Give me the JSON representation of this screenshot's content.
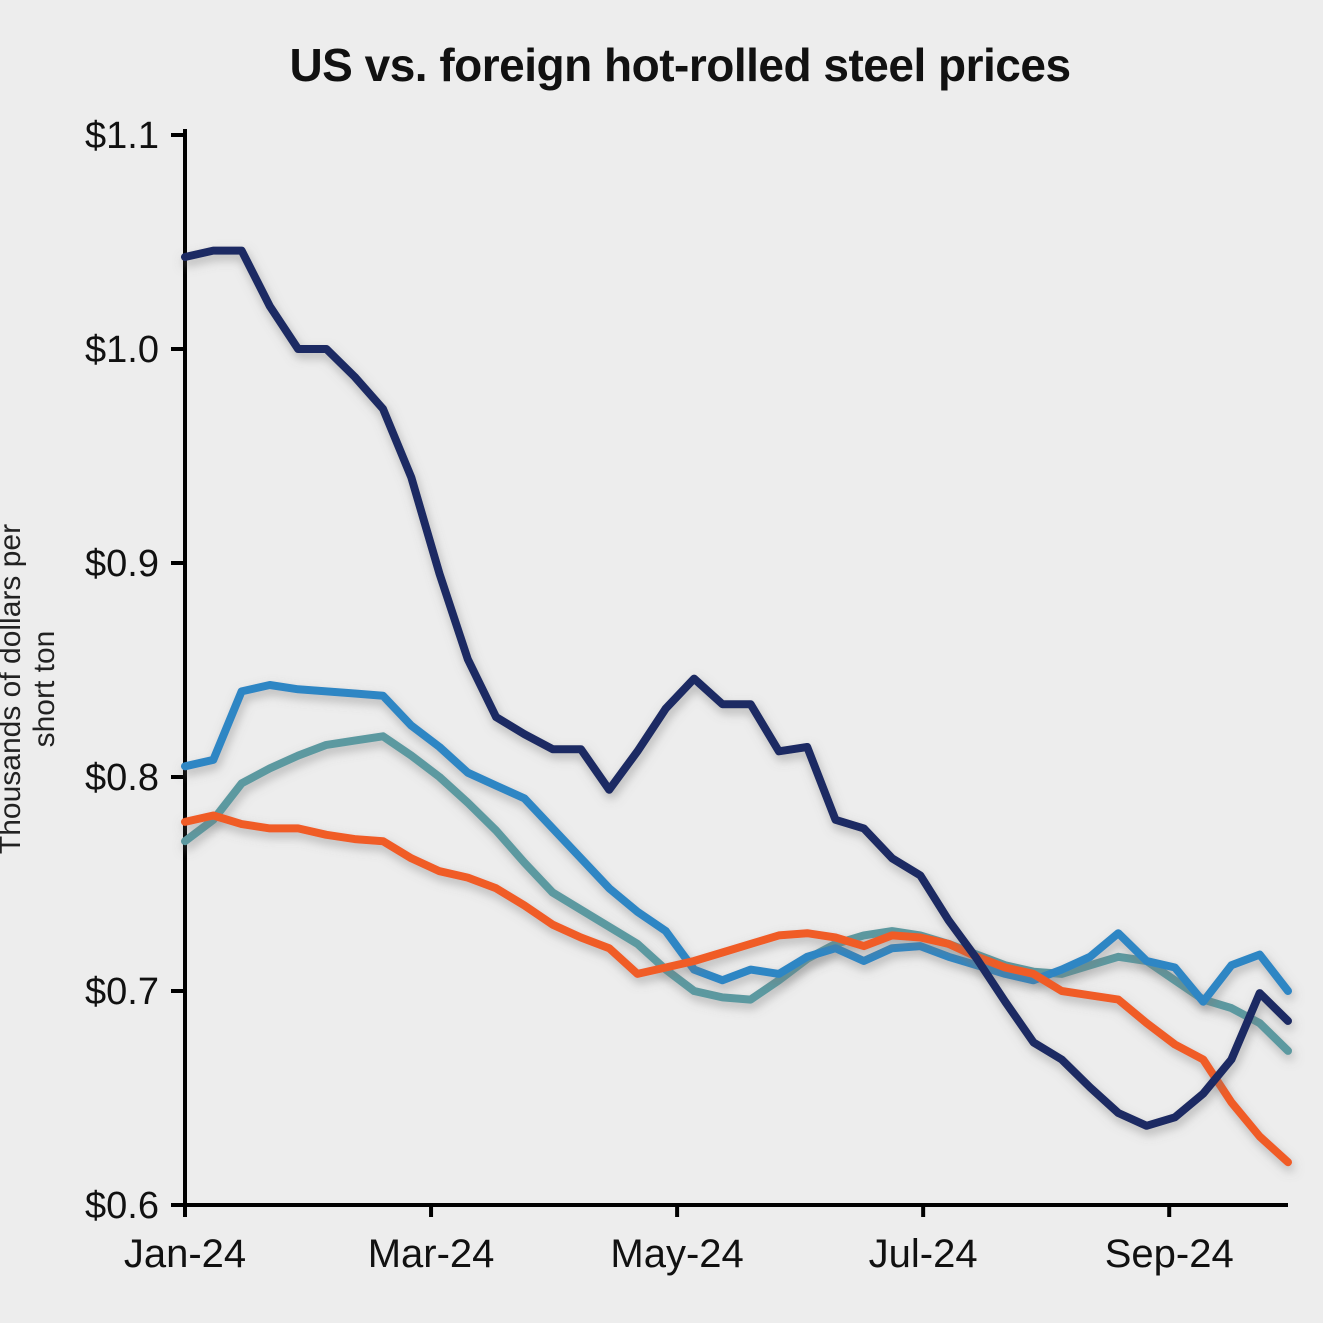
{
  "title": "US vs. foreign hot-rolled steel prices",
  "axes": {
    "y_label": "Thousands of dollars per short ton",
    "y_ticks": [
      "$0.6",
      "$0.7",
      "$0.8",
      "$0.9",
      "$1.0",
      "$1.1"
    ],
    "x_ticks": [
      "Jan-24",
      "Mar-24",
      "May-24",
      "Jul-24",
      "Sep-24"
    ]
  },
  "colors": {
    "background": "#ededed",
    "axis": "#000000"
  },
  "chart_data": {
    "type": "line",
    "title": "US vs. foreign hot-rolled steel prices",
    "xlabel": "",
    "ylabel": "Thousands of dollars per short ton",
    "ylim": [
      0.6,
      1.1
    ],
    "x_unit": "weekly points, Jan-24 through late Sep-24",
    "grid": false,
    "legend": "none",
    "x_tick_labels": [
      "Jan-24",
      "Mar-24",
      "May-24",
      "Jul-24",
      "Sep-24"
    ],
    "x_tick_positions": [
      0,
      8.7,
      17.4,
      26.1,
      34.8
    ],
    "series": [
      {
        "name": "teal-line",
        "color": "#5b99a0",
        "values": [
          0.77,
          0.78,
          0.797,
          0.804,
          0.81,
          0.815,
          0.817,
          0.819,
          0.81,
          0.8,
          0.788,
          0.775,
          0.76,
          0.746,
          0.738,
          0.73,
          0.722,
          0.71,
          0.7,
          0.697,
          0.696,
          0.705,
          0.715,
          0.722,
          0.726,
          0.728,
          0.726,
          0.722,
          0.717,
          0.712,
          0.709,
          0.708,
          0.712,
          0.716,
          0.714,
          0.705,
          0.696,
          0.692,
          0.685,
          0.672
        ]
      },
      {
        "name": "blue-line",
        "color": "#2f86c4",
        "values": [
          0.805,
          0.808,
          0.84,
          0.843,
          0.841,
          0.84,
          0.839,
          0.838,
          0.824,
          0.814,
          0.802,
          0.796,
          0.79,
          0.776,
          0.762,
          0.748,
          0.737,
          0.728,
          0.71,
          0.705,
          0.71,
          0.708,
          0.716,
          0.72,
          0.714,
          0.72,
          0.721,
          0.716,
          0.712,
          0.708,
          0.705,
          0.71,
          0.716,
          0.727,
          0.714,
          0.711,
          0.695,
          0.712,
          0.717,
          0.7
        ]
      },
      {
        "name": "orange-line",
        "color": "#f05b28",
        "values": [
          0.779,
          0.782,
          0.778,
          0.776,
          0.776,
          0.773,
          0.771,
          0.77,
          0.762,
          0.756,
          0.753,
          0.748,
          0.74,
          0.731,
          0.725,
          0.72,
          0.708,
          0.711,
          0.714,
          0.718,
          0.722,
          0.726,
          0.727,
          0.725,
          0.721,
          0.726,
          0.725,
          0.722,
          0.716,
          0.711,
          0.708,
          0.7,
          0.698,
          0.696,
          0.685,
          0.675,
          0.668,
          0.648,
          0.632,
          0.62
        ]
      },
      {
        "name": "navy-line",
        "color": "#1b2a63",
        "values": [
          1.043,
          1.046,
          1.046,
          1.02,
          1.0,
          1.0,
          0.987,
          0.972,
          0.94,
          0.895,
          0.855,
          0.828,
          0.82,
          0.813,
          0.813,
          0.794,
          0.812,
          0.832,
          0.846,
          0.834,
          0.834,
          0.812,
          0.814,
          0.78,
          0.776,
          0.762,
          0.754,
          0.733,
          0.715,
          0.695,
          0.676,
          0.668,
          0.655,
          0.643,
          0.637,
          0.641,
          0.652,
          0.668,
          0.699,
          0.686
        ]
      }
    ]
  }
}
